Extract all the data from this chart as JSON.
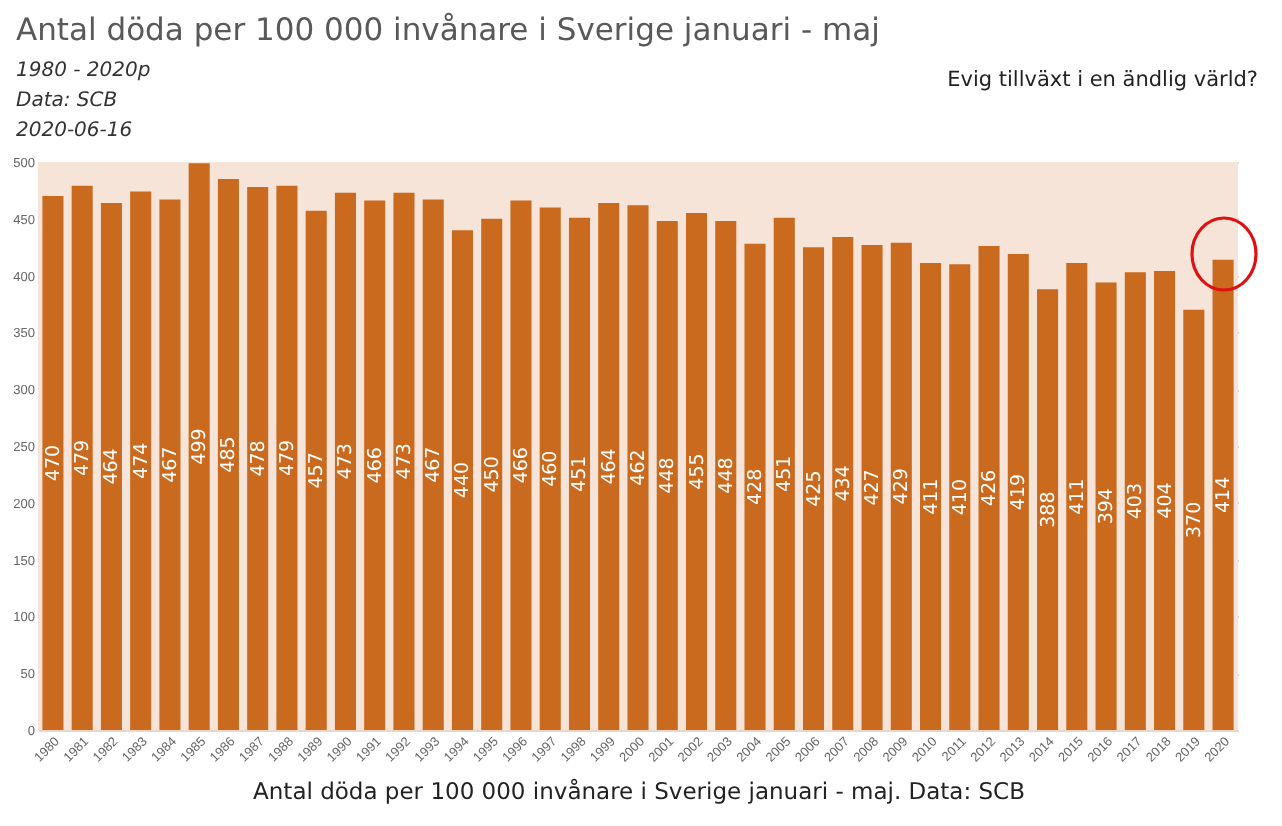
{
  "chart_data": {
    "type": "bar",
    "title": "Antal döda per 100 000 invånare i Sverige januari - maj",
    "subtitle": "1980 - 2020p",
    "annotations": [
      "Data: SCB",
      "2020-06-16",
      "Evig tillväxt i en ändlig värld?"
    ],
    "xlabel": "Antal döda per 100 000 invånare i Sverige januari - maj. Data: SCB",
    "categories": [
      "1980",
      "1981",
      "1982",
      "1983",
      "1984",
      "1985",
      "1986",
      "1987",
      "1988",
      "1989",
      "1990",
      "1991",
      "1992",
      "1993",
      "1994",
      "1995",
      "1996",
      "1997",
      "1998",
      "1999",
      "2000",
      "2001",
      "2002",
      "2003",
      "2004",
      "2005",
      "2006",
      "2007",
      "2008",
      "2009",
      "2010",
      "2011",
      "2012",
      "2013",
      "2014",
      "2015",
      "2016",
      "2017",
      "2018",
      "2019",
      "2020"
    ],
    "values": [
      470,
      479,
      464,
      474,
      467,
      499,
      485,
      478,
      479,
      457,
      473,
      466,
      473,
      467,
      440,
      450,
      466,
      460,
      451,
      464,
      462,
      448,
      455,
      448,
      428,
      451,
      425,
      434,
      427,
      429,
      411,
      410,
      426,
      419,
      388,
      411,
      394,
      403,
      404,
      370,
      414
    ],
    "color": "#c96a1e",
    "bands": [
      {
        "axis": "y",
        "from": 0,
        "to": 500,
        "color": "#f6e4d8"
      }
    ],
    "ylim": [
      0,
      500
    ],
    "yticks": [
      0,
      50,
      100,
      150,
      200,
      250,
      300,
      350,
      400,
      450,
      500
    ],
    "grid": "y",
    "data_labels": true
  }
}
